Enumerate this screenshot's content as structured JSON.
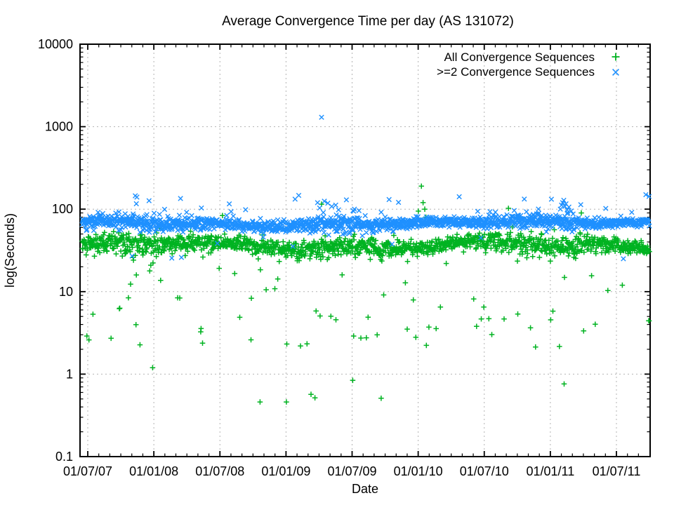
{
  "chart_data": {
    "type": "scatter",
    "title": "Average Convergence Time per day (AS 131072)",
    "xlabel": "Date",
    "ylabel": "log(Seconds)",
    "x_axis": {
      "ticks": [
        "01/07/07",
        "01/01/08",
        "01/07/08",
        "01/01/09",
        "01/07/09",
        "01/01/10",
        "01/07/10",
        "01/01/11",
        "01/07/11"
      ],
      "minor_ticks": "monthly",
      "range_note": "data spans mid-June 2007 to early October 2011, one point per day per series"
    },
    "y_axis": {
      "scale": "log10",
      "ticks": [
        "0.1",
        "1",
        "10",
        "100",
        "1000",
        "10000"
      ],
      "range": [
        0.1,
        10000
      ]
    },
    "grid": {
      "major": true,
      "style": "dashed",
      "color": "#b3b3b3"
    },
    "legend": {
      "position": "top-right-inside"
    },
    "notable_points_format": "[x_fraction_of_time_axis, seconds]",
    "series": [
      {
        "name": "All Convergence Sequences",
        "marker": "plus",
        "color": "#00b321",
        "n_points": 1570,
        "band": {
          "center_seconds": 36,
          "center_wobble": [
            3,
            2
          ],
          "log10_sigma": 0.055,
          "typical_range": [
            25,
            55
          ]
        },
        "low_outliers": {
          "rate": 0.048,
          "value_range": [
            2,
            27
          ]
        },
        "rare_low_outliers": {
          "rate": 0.003,
          "value_range": [
            0.4,
            1.6
          ]
        },
        "high_outliers": {
          "rate": 0.002,
          "value_range": [
            60,
            110
          ]
        },
        "notable_points": [
          [
            0.598,
            190
          ],
          [
            0.601,
            120
          ],
          [
            0.604,
            100
          ],
          [
            0.606,
            80
          ],
          [
            0.422,
            115
          ],
          [
            0.88,
            90
          ],
          [
            0.36,
            0.46
          ],
          [
            0.477,
            0.84
          ],
          [
            0.012,
            2.6
          ]
        ]
      },
      {
        "name": ">=2 Convergence Sequences",
        "marker": "cross",
        "color": "#1e90ff",
        "n_points": 1570,
        "band": {
          "center_seconds": 67,
          "center_wobble": [
            4,
            2
          ],
          "log10_sigma": 0.04,
          "typical_range": [
            52,
            92
          ]
        },
        "low_outliers": {
          "rate": 0.004,
          "value_range": [
            35,
            50
          ]
        },
        "rare_low_outliers": {
          "rate": 0.0013,
          "value_range": [
            25,
            30
          ]
        },
        "high_outliers": {
          "rate": 0.02,
          "value_range": [
            88,
            150
          ]
        },
        "notable_points": [
          [
            0.422,
            1300
          ],
          [
            0.0965,
            140
          ],
          [
            0.415,
            120
          ],
          [
            0.427,
            125
          ],
          [
            0.433,
            118
          ],
          [
            0.44,
            108
          ],
          [
            0.447,
            112
          ],
          [
            0.452,
            98
          ],
          [
            0.48,
            100
          ],
          [
            0.488,
            96
          ],
          [
            0.843,
            100
          ],
          [
            0.845,
            112
          ],
          [
            0.847,
            120
          ],
          [
            0.849,
            128
          ],
          [
            0.851,
            108
          ],
          [
            0.853,
            116
          ],
          [
            0.855,
            98
          ],
          [
            0.858,
            106
          ],
          [
            0.862,
            95
          ],
          [
            0.923,
            102
          ],
          [
            0.088,
            27
          ],
          [
            0.175,
            26
          ]
        ]
      }
    ]
  }
}
